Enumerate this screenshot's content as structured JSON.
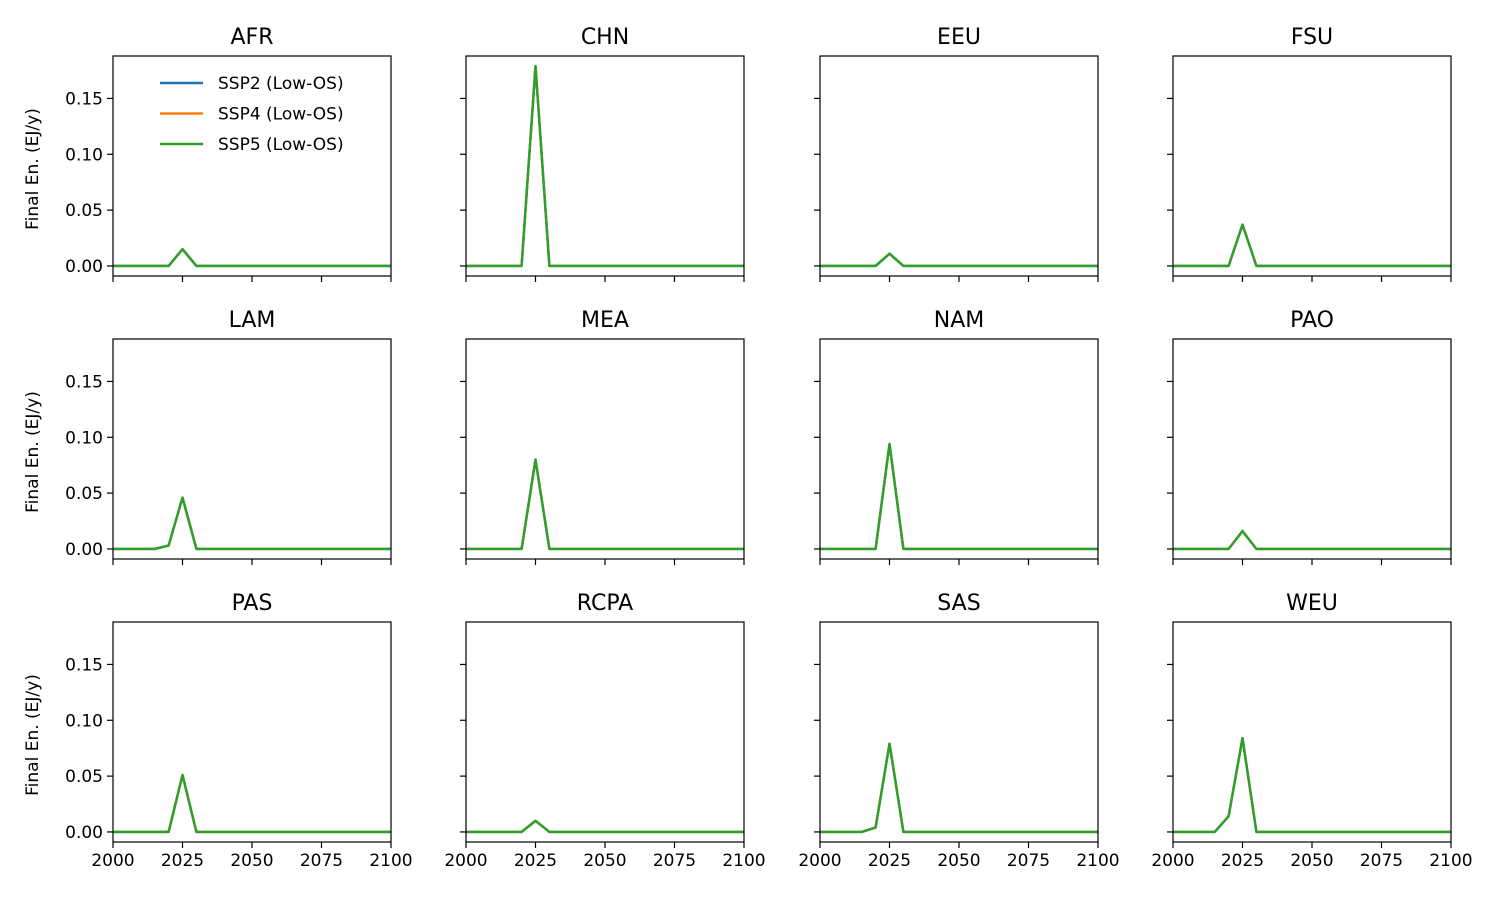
{
  "chart_data": {
    "type": "line",
    "layout": "3x4 small multiples, shared axes",
    "ylabel": "Final En. (EJ/y)",
    "xlim": [
      2000,
      2100
    ],
    "ylim": [
      -0.009,
      0.188
    ],
    "xticks": [
      2000,
      2025,
      2050,
      2075,
      2100
    ],
    "xtick_labels": [
      "2000",
      "2025",
      "2050",
      "2075",
      "2100"
    ],
    "yticks": [
      0.0,
      0.05,
      0.1,
      0.15
    ],
    "ytick_labels": [
      "0.00",
      "0.05",
      "0.10",
      "0.15"
    ],
    "grid": false,
    "legend": {
      "location": "upper-right of first panel",
      "entries": [
        {
          "name": "SSP2 (Low-OS)",
          "color": "#1f77b4"
        },
        {
          "name": "SSP4 (Low-OS)",
          "color": "#ff7f0e"
        },
        {
          "name": "SSP5 (Low-OS)",
          "color": "#2ca02c"
        }
      ]
    },
    "x": [
      2000,
      2005,
      2010,
      2015,
      2020,
      2025,
      2030,
      2035,
      2040,
      2045,
      2050,
      2055,
      2060,
      2065,
      2070,
      2075,
      2080,
      2085,
      2090,
      2095,
      2100
    ],
    "panels": [
      {
        "title": "AFR",
        "values": [
          0,
          0,
          0,
          0,
          0,
          0.015,
          0,
          0,
          0,
          0,
          0,
          0,
          0,
          0,
          0,
          0,
          0,
          0,
          0,
          0,
          0
        ]
      },
      {
        "title": "CHN",
        "values": [
          0,
          0,
          0,
          0,
          0,
          0.179,
          0,
          0,
          0,
          0,
          0,
          0,
          0,
          0,
          0,
          0,
          0,
          0,
          0,
          0,
          0
        ]
      },
      {
        "title": "EEU",
        "values": [
          0,
          0,
          0,
          0,
          0,
          0.011,
          0,
          0,
          0,
          0,
          0,
          0,
          0,
          0,
          0,
          0,
          0,
          0,
          0,
          0,
          0
        ]
      },
      {
        "title": "FSU",
        "values": [
          0,
          0,
          0,
          0,
          0,
          0.037,
          0,
          0,
          0,
          0,
          0,
          0,
          0,
          0,
          0,
          0,
          0,
          0,
          0,
          0,
          0
        ]
      },
      {
        "title": "LAM",
        "values": [
          0,
          0,
          0,
          0,
          0.003,
          0.046,
          0,
          0,
          0,
          0,
          0,
          0,
          0,
          0,
          0,
          0,
          0,
          0,
          0,
          0,
          0
        ]
      },
      {
        "title": "MEA",
        "values": [
          0,
          0,
          0,
          0,
          0,
          0.08,
          0,
          0,
          0,
          0,
          0,
          0,
          0,
          0,
          0,
          0,
          0,
          0,
          0,
          0,
          0
        ]
      },
      {
        "title": "NAM",
        "values": [
          0,
          0,
          0,
          0,
          0,
          0.094,
          0,
          0,
          0,
          0,
          0,
          0,
          0,
          0,
          0,
          0,
          0,
          0,
          0,
          0,
          0
        ]
      },
      {
        "title": "PAO",
        "values": [
          0,
          0,
          0,
          0,
          0,
          0.016,
          0,
          0,
          0,
          0,
          0,
          0,
          0,
          0,
          0,
          0,
          0,
          0,
          0,
          0,
          0
        ]
      },
      {
        "title": "PAS",
        "values": [
          0,
          0,
          0,
          0,
          0,
          0.051,
          0,
          0,
          0,
          0,
          0,
          0,
          0,
          0,
          0,
          0,
          0,
          0,
          0,
          0,
          0
        ]
      },
      {
        "title": "RCPA",
        "values": [
          0,
          0,
          0,
          0,
          0,
          0.01,
          0,
          0,
          0,
          0,
          0,
          0,
          0,
          0,
          0,
          0,
          0,
          0,
          0,
          0,
          0
        ]
      },
      {
        "title": "SAS",
        "values": [
          0,
          0,
          0,
          0,
          0.004,
          0.079,
          0,
          0,
          0,
          0,
          0,
          0,
          0,
          0,
          0,
          0,
          0,
          0,
          0,
          0,
          0
        ]
      },
      {
        "title": "WEU",
        "values": [
          0,
          0,
          0,
          0,
          0.014,
          0.084,
          0,
          0,
          0,
          0,
          0,
          0,
          0,
          0,
          0,
          0,
          0,
          0,
          0,
          0,
          0
        ]
      }
    ]
  }
}
